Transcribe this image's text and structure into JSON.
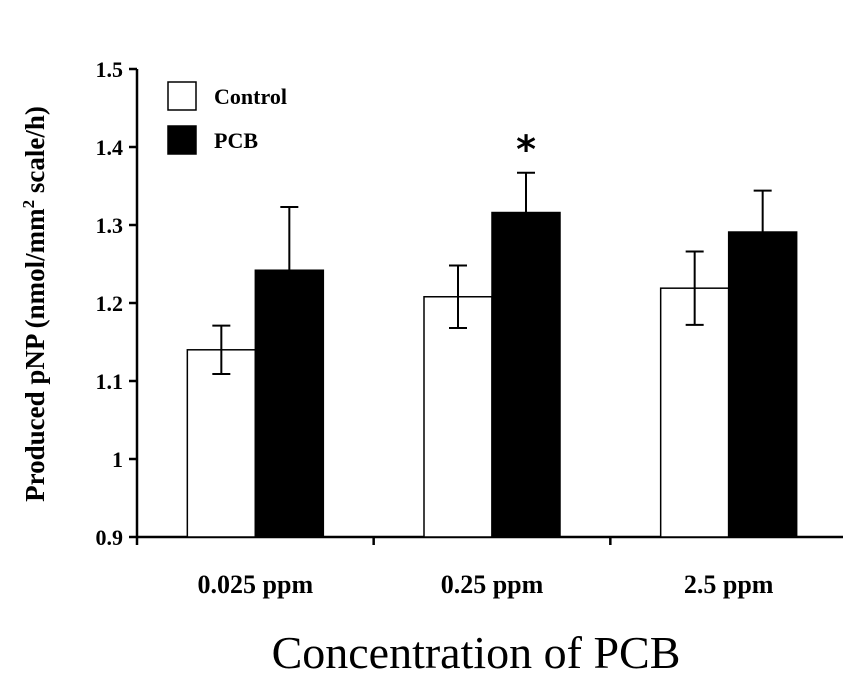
{
  "chart_data": {
    "type": "bar",
    "categories": [
      "0.025 ppm",
      "0.25 ppm",
      "2.5 ppm"
    ],
    "series": [
      {
        "name": "Control",
        "values": [
          1.14,
          1.208,
          1.219
        ],
        "errors": [
          0.031,
          0.04,
          0.047
        ],
        "fill": "#ffffff"
      },
      {
        "name": "PCB",
        "values": [
          1.242,
          1.316,
          1.291
        ],
        "errors": [
          0.081,
          0.051,
          0.053
        ],
        "fill": "#000000"
      }
    ],
    "significance": [
      null,
      "*",
      null
    ],
    "xlabel": "Concentration of PCB",
    "ylabel": {
      "main": "Produced pNP (nmol/mm",
      "superscript": "2",
      "rest": " scale/h)"
    },
    "ylim": [
      0.9,
      1.5
    ],
    "yticks": [
      "0.9",
      "1",
      "1.1",
      "1.2",
      "1.3",
      "1.4",
      "1.5"
    ],
    "legend_position": "top-left",
    "grid": false
  }
}
